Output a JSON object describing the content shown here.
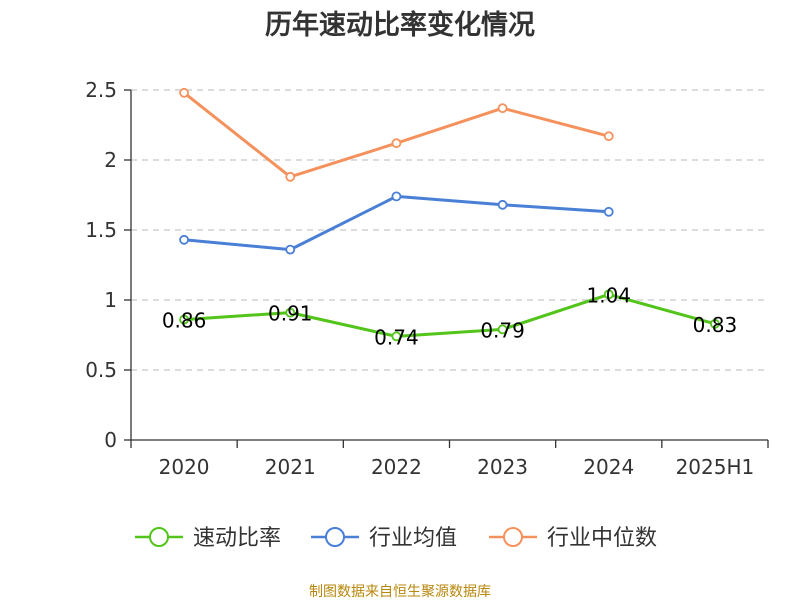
{
  "chart_data": {
    "type": "line",
    "title": "历年速动比率变化情况",
    "categories": [
      "2020",
      "2021",
      "2022",
      "2023",
      "2024",
      "2025H1"
    ],
    "y_ticks": [
      "0",
      "0.5",
      "1",
      "1.5",
      "2",
      "2.5"
    ],
    "ylim": [
      0,
      2.5
    ],
    "grid": "horizontal dashed",
    "legend_position": "bottom",
    "series": [
      {
        "name": "速动比率",
        "color": "#52c41a",
        "values": [
          0.86,
          0.91,
          0.74,
          0.79,
          1.04,
          0.83
        ],
        "labels": [
          "0.86",
          "0.91",
          "0.74",
          "0.79",
          "1.04",
          "0.83"
        ]
      },
      {
        "name": "行业均值",
        "color": "#4a7fd6",
        "values": [
          1.43,
          1.36,
          1.74,
          1.68,
          1.63,
          null
        ]
      },
      {
        "name": "行业中位数",
        "color": "#f5915c",
        "values": [
          2.48,
          1.88,
          2.12,
          2.37,
          2.17,
          null
        ]
      }
    ]
  },
  "source_text": "制图数据来自恒生聚源数据库"
}
